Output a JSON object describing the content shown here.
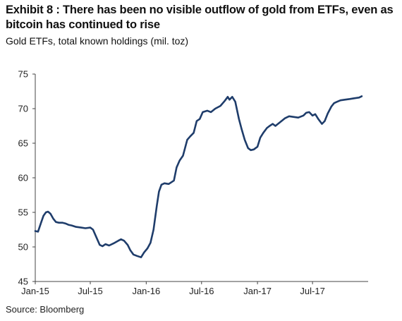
{
  "title": "Exhibit 8 : There has been no visible outflow of gold from ETFs, even as bitcoin has continued to rise",
  "subtitle": "Gold ETFs, total known holdings (mil. toz)",
  "source": "Source: Bloomberg",
  "chart_data": {
    "type": "line",
    "title": "Exhibit 8 : There has been no visible outflow of gold from ETFs, even as bitcoin has continued to rise",
    "subtitle": "Gold ETFs, total known holdings (mil. toz)",
    "xlabel": "",
    "ylabel": "",
    "ylim": [
      45,
      75
    ],
    "yticks": [
      45,
      50,
      55,
      60,
      65,
      70,
      75
    ],
    "xlim": [
      "2015-01-01",
      "2017-12-31"
    ],
    "xticks": [
      {
        "date": "2015-01-01",
        "label": "Jan-15"
      },
      {
        "date": "2015-07-01",
        "label": "Jul-15"
      },
      {
        "date": "2016-01-01",
        "label": "Jan-16"
      },
      {
        "date": "2016-07-01",
        "label": "Jul-16"
      },
      {
        "date": "2017-01-01",
        "label": "Jan-17"
      },
      {
        "date": "2017-07-01",
        "label": "Jul-17"
      }
    ],
    "grid": false,
    "legend": "none",
    "line_color": "#1f3d6b",
    "series": [
      {
        "points": [
          [
            "2015-01-01",
            52.3
          ],
          [
            "2015-01-10",
            52.2
          ],
          [
            "2015-01-20",
            53.5
          ],
          [
            "2015-01-28",
            54.5
          ],
          [
            "2015-02-05",
            55.0
          ],
          [
            "2015-02-12",
            55.1
          ],
          [
            "2015-02-20",
            54.8
          ],
          [
            "2015-03-01",
            54.1
          ],
          [
            "2015-03-10",
            53.6
          ],
          [
            "2015-03-20",
            53.5
          ],
          [
            "2015-04-01",
            53.5
          ],
          [
            "2015-04-10",
            53.4
          ],
          [
            "2015-04-20",
            53.2
          ],
          [
            "2015-05-01",
            53.1
          ],
          [
            "2015-05-15",
            52.9
          ],
          [
            "2015-06-01",
            52.8
          ],
          [
            "2015-06-15",
            52.7
          ],
          [
            "2015-07-01",
            52.8
          ],
          [
            "2015-07-10",
            52.5
          ],
          [
            "2015-07-20",
            51.5
          ],
          [
            "2015-08-01",
            50.3
          ],
          [
            "2015-08-10",
            50.1
          ],
          [
            "2015-08-20",
            50.4
          ],
          [
            "2015-09-01",
            50.2
          ],
          [
            "2015-09-15",
            50.5
          ],
          [
            "2015-10-01",
            50.9
          ],
          [
            "2015-10-10",
            51.1
          ],
          [
            "2015-10-20",
            50.9
          ],
          [
            "2015-11-01",
            50.3
          ],
          [
            "2015-11-10",
            49.5
          ],
          [
            "2015-11-20",
            48.9
          ],
          [
            "2015-12-01",
            48.7
          ],
          [
            "2015-12-15",
            48.5
          ],
          [
            "2015-12-25",
            49.2
          ],
          [
            "2016-01-05",
            49.8
          ],
          [
            "2016-01-15",
            50.6
          ],
          [
            "2016-01-25",
            52.5
          ],
          [
            "2016-02-05",
            56.0
          ],
          [
            "2016-02-12",
            58.0
          ],
          [
            "2016-02-20",
            59.0
          ],
          [
            "2016-03-01",
            59.2
          ],
          [
            "2016-03-15",
            59.1
          ],
          [
            "2016-04-01",
            59.6
          ],
          [
            "2016-04-10",
            61.5
          ],
          [
            "2016-04-20",
            62.5
          ],
          [
            "2016-05-01",
            63.2
          ],
          [
            "2016-05-15",
            65.5
          ],
          [
            "2016-05-25",
            66.0
          ],
          [
            "2016-06-05",
            66.5
          ],
          [
            "2016-06-15",
            68.2
          ],
          [
            "2016-06-25",
            68.5
          ],
          [
            "2016-07-05",
            69.5
          ],
          [
            "2016-07-20",
            69.7
          ],
          [
            "2016-08-01",
            69.5
          ],
          [
            "2016-08-15",
            70.0
          ],
          [
            "2016-09-01",
            70.4
          ],
          [
            "2016-09-15",
            71.1
          ],
          [
            "2016-09-25",
            71.7
          ],
          [
            "2016-10-01",
            71.3
          ],
          [
            "2016-10-10",
            71.7
          ],
          [
            "2016-10-20",
            71.0
          ],
          [
            "2016-11-01",
            68.5
          ],
          [
            "2016-11-10",
            67.0
          ],
          [
            "2016-11-20",
            65.5
          ],
          [
            "2016-12-01",
            64.3
          ],
          [
            "2016-12-10",
            64.0
          ],
          [
            "2016-12-20",
            64.1
          ],
          [
            "2017-01-01",
            64.5
          ],
          [
            "2017-01-10",
            65.8
          ],
          [
            "2017-01-20",
            66.5
          ],
          [
            "2017-02-01",
            67.2
          ],
          [
            "2017-02-10",
            67.5
          ],
          [
            "2017-02-20",
            67.8
          ],
          [
            "2017-03-01",
            67.5
          ],
          [
            "2017-03-15",
            68.0
          ],
          [
            "2017-04-01",
            68.6
          ],
          [
            "2017-04-15",
            68.9
          ],
          [
            "2017-05-01",
            68.8
          ],
          [
            "2017-05-15",
            68.7
          ],
          [
            "2017-06-01",
            69.0
          ],
          [
            "2017-06-10",
            69.4
          ],
          [
            "2017-06-20",
            69.5
          ],
          [
            "2017-07-01",
            69.0
          ],
          [
            "2017-07-10",
            69.2
          ],
          [
            "2017-07-20",
            68.5
          ],
          [
            "2017-08-01",
            67.8
          ],
          [
            "2017-08-10",
            68.2
          ],
          [
            "2017-08-20",
            69.3
          ],
          [
            "2017-09-01",
            70.3
          ],
          [
            "2017-09-10",
            70.8
          ],
          [
            "2017-09-20",
            71.0
          ],
          [
            "2017-10-01",
            71.2
          ],
          [
            "2017-10-15",
            71.3
          ],
          [
            "2017-11-01",
            71.4
          ],
          [
            "2017-11-15",
            71.5
          ],
          [
            "2017-12-01",
            71.6
          ],
          [
            "2017-12-10",
            71.8
          ]
        ]
      }
    ]
  }
}
